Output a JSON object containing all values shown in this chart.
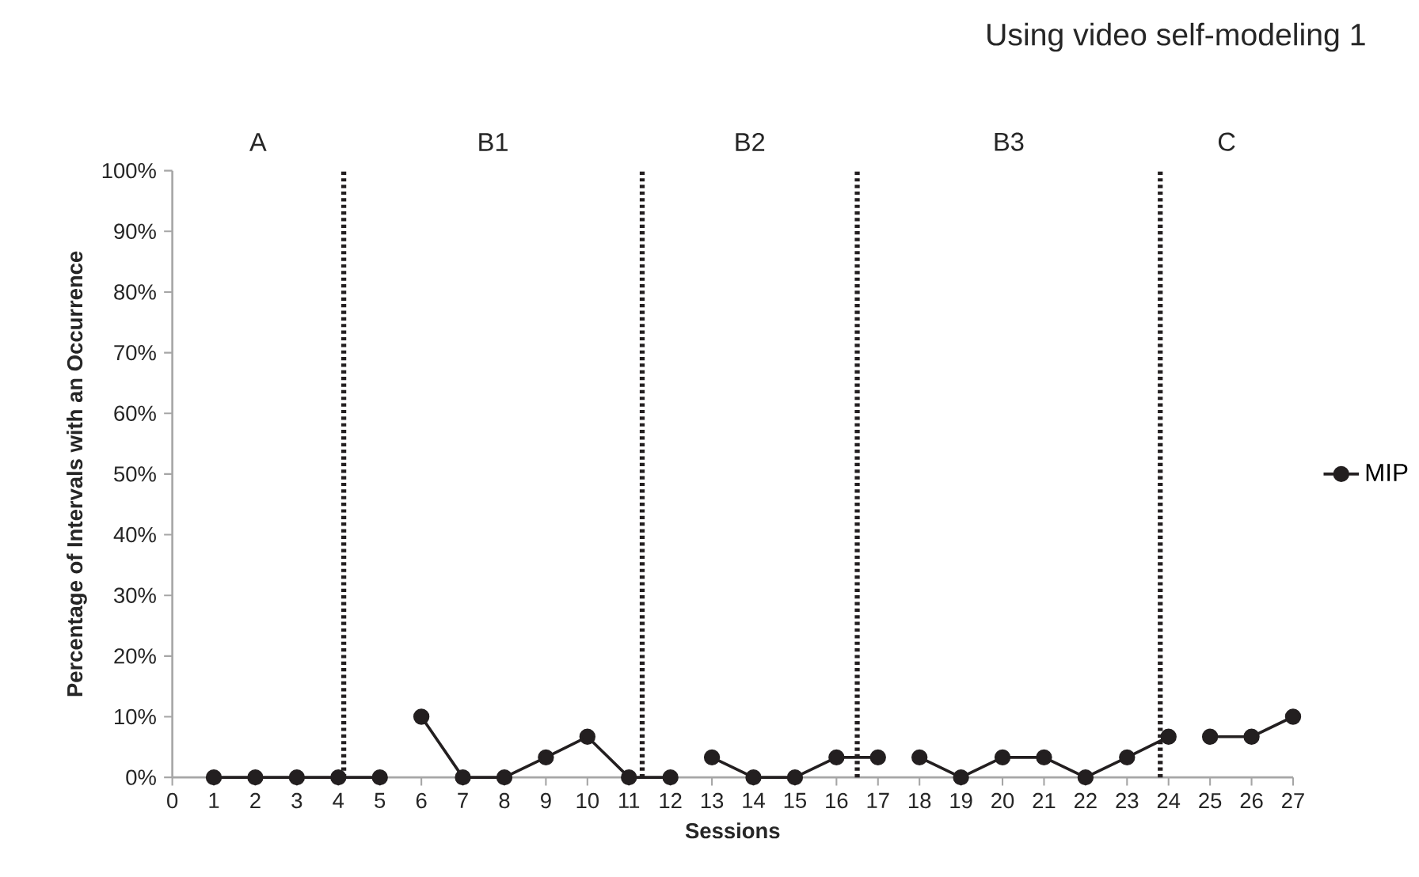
{
  "chart_data": {
    "type": "line",
    "title": "Using video self-modeling   1",
    "xlabel": "Sessions",
    "ylabel": "Percentage of Intervals with an Occurrence",
    "xlim": [
      0,
      27
    ],
    "ylim": [
      0,
      100
    ],
    "xticks": [
      0,
      1,
      2,
      3,
      4,
      5,
      6,
      7,
      8,
      9,
      10,
      11,
      12,
      13,
      14,
      15,
      16,
      17,
      18,
      19,
      20,
      21,
      22,
      23,
      24,
      25,
      26,
      27
    ],
    "yticks": [
      {
        "value": 0,
        "label": "0%"
      },
      {
        "value": 10,
        "label": "10%"
      },
      {
        "value": 20,
        "label": "20%"
      },
      {
        "value": 30,
        "label": "30%"
      },
      {
        "value": 40,
        "label": "40%"
      },
      {
        "value": 50,
        "label": "50%"
      },
      {
        "value": 60,
        "label": "60%"
      },
      {
        "value": 70,
        "label": "70%"
      },
      {
        "value": 80,
        "label": "80%"
      },
      {
        "value": 90,
        "label": "90%"
      },
      {
        "value": 100,
        "label": "100%"
      }
    ],
    "marker": "circle",
    "line_style": "solid",
    "legend": "right",
    "series": [
      {
        "name": "MIP",
        "color": "#231f20",
        "x": [
          1,
          2,
          3,
          4,
          5
        ],
        "values": [
          0,
          0,
          0,
          0,
          0
        ]
      },
      {
        "color": "#231f20",
        "x": [
          6,
          7,
          8,
          9,
          10,
          11,
          12
        ],
        "values": [
          10,
          0,
          0,
          3.3,
          6.7,
          0,
          0
        ]
      },
      {
        "color": "#231f20",
        "x": [
          13,
          14,
          15,
          16,
          17
        ],
        "values": [
          3.3,
          0,
          0,
          3.3,
          3.3
        ]
      },
      {
        "color": "#231f20",
        "x": [
          18,
          19,
          20,
          21,
          22,
          23,
          24
        ],
        "values": [
          3.3,
          0,
          3.3,
          3.3,
          0,
          3.3,
          6.7
        ]
      },
      {
        "color": "#231f20",
        "x": [
          25,
          26,
          27
        ],
        "values": [
          6.7,
          6.7,
          10
        ]
      }
    ],
    "ref_lines": [
      {
        "axis": "x",
        "value": 4.13,
        "color": "#231f20",
        "line_style": "dotted"
      },
      {
        "axis": "x",
        "value": 11.32,
        "color": "#231f20",
        "line_style": "dotted"
      },
      {
        "axis": "x",
        "value": 16.5,
        "color": "#231f20",
        "line_style": "dotted"
      },
      {
        "axis": "x",
        "value": 23.8,
        "color": "#231f20",
        "line_style": "dotted"
      }
    ],
    "annotations": [
      "A",
      "B1",
      "B2",
      "B3",
      "C"
    ]
  }
}
